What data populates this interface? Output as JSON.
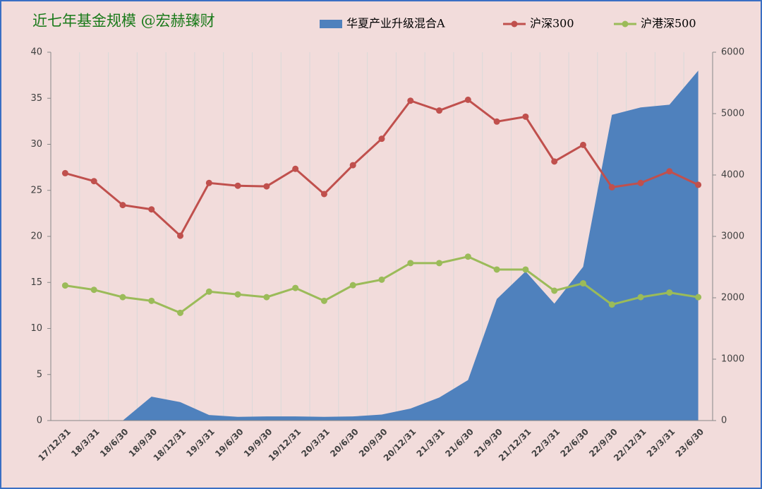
{
  "chart_data": {
    "type": "area_line",
    "title": "近七年基金规模 @宏赫臻财",
    "categories": [
      "17/12/31",
      "18/3/31",
      "18/6/30",
      "18/9/30",
      "18/12/31",
      "19/3/31",
      "19/6/30",
      "19/9/30",
      "19/12/31",
      "20/3/31",
      "20/6/30",
      "20/9/30",
      "20/12/31",
      "21/3/31",
      "21/6/30",
      "21/9/30",
      "21/12/31",
      "22/3/31",
      "22/6/30",
      "22/9/30",
      "22/12/31",
      "23/3/31",
      "23/6/30"
    ],
    "series": [
      {
        "name": "华夏产业升级混合A",
        "type": "area",
        "color": "#4f81bd",
        "values": [
          null,
          null,
          0,
          2.6,
          2.0,
          0.6,
          0.4,
          0.45,
          0.45,
          0.4,
          0.45,
          0.65,
          1.3,
          2.5,
          4.4,
          13.2,
          16.2,
          12.7,
          16.7,
          33.2,
          34.0,
          34.3,
          38.0
        ]
      },
      {
        "name": "沪深300",
        "type": "line",
        "axis": "y2",
        "color": "#c0504d",
        "values": [
          4030,
          3900,
          3510,
          3440,
          3010,
          3870,
          3825,
          3815,
          4100,
          3690,
          4160,
          4590,
          5210,
          5050,
          5225,
          4870,
          4950,
          4220,
          4490,
          3800,
          3870,
          4060,
          3840
        ]
      },
      {
        "name": "沪港深500",
        "type": "line",
        "axis": "y2",
        "color": "#9bbb59",
        "values": [
          2200,
          2130,
          2010,
          1950,
          1755,
          2100,
          2055,
          2010,
          2160,
          1950,
          2205,
          2295,
          2565,
          2565,
          2670,
          2460,
          2460,
          2115,
          2235,
          1890,
          2010,
          2085,
          2010
        ]
      }
    ],
    "ylim": [
      0,
      40
    ],
    "yticks": [
      0,
      5,
      10,
      15,
      20,
      25,
      30,
      35,
      40
    ],
    "y2lim": [
      0,
      6000
    ],
    "y2ticks": [
      0,
      1000,
      2000,
      3000,
      4000,
      5000,
      6000
    ],
    "grid": "x",
    "legend": "top"
  }
}
